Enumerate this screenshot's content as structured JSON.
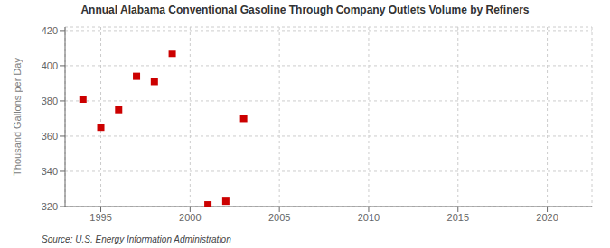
{
  "chart_data": {
    "type": "scatter",
    "title": "Annual Alabama Conventional Gasoline Through Company Outlets Volume by Refiners",
    "ylabel": "Thousand Gallons per Day",
    "annotation": "Source: U.S. Energy Information Administration",
    "x": [
      1994,
      1995,
      1996,
      1997,
      1998,
      1999,
      2001,
      2002,
      2003
    ],
    "values": [
      381,
      365,
      375,
      394,
      391,
      407,
      321,
      323,
      370
    ],
    "color": "#cc0000",
    "marker": "square",
    "xlim": [
      1993.0,
      2022.5
    ],
    "ylim": [
      320,
      422
    ],
    "xticks": [
      1995,
      2000,
      2005,
      2010,
      2015,
      2020
    ],
    "yticks": [
      320,
      340,
      360,
      380,
      400,
      420
    ],
    "grid": true
  }
}
